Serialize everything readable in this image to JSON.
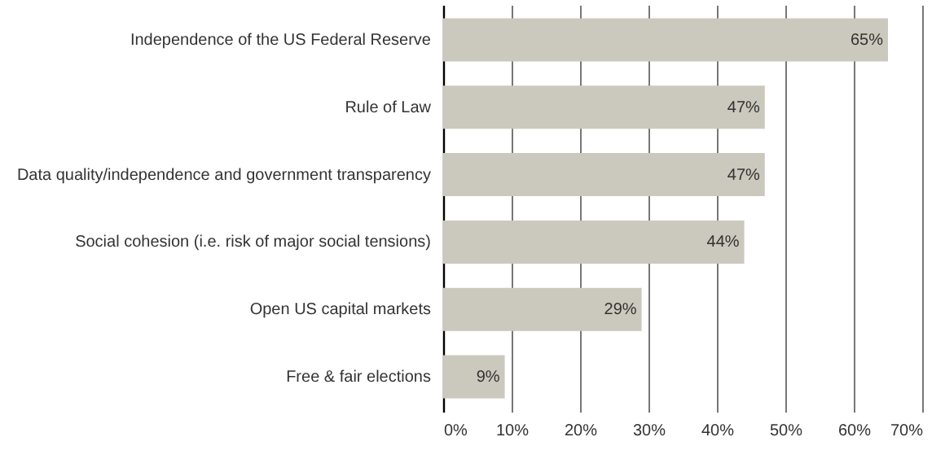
{
  "chart_data": {
    "type": "bar",
    "orientation": "horizontal",
    "categories": [
      "Independence of the US Federal Reserve",
      "Rule of Law",
      "Data quality/independence and government transparency",
      "Social cohesion (i.e. risk of major social tensions)",
      "Open US capital markets",
      "Free & fair elections"
    ],
    "values": [
      65,
      47,
      47,
      44,
      29,
      9
    ],
    "value_labels": [
      "65%",
      "47%",
      "47%",
      "44%",
      "29%",
      "9%"
    ],
    "color": "#cbc8bd",
    "xlim": [
      0,
      70
    ],
    "xticks": [
      {
        "value": 0,
        "label": "0%"
      },
      {
        "value": 10,
        "label": "10%"
      },
      {
        "value": 20,
        "label": "20%"
      },
      {
        "value": 30,
        "label": "30%"
      },
      {
        "value": 40,
        "label": "40%"
      },
      {
        "value": 50,
        "label": "50%"
      },
      {
        "value": 60,
        "label": "60%"
      },
      {
        "value": 70,
        "label": "70%"
      }
    ],
    "grid": "x"
  }
}
